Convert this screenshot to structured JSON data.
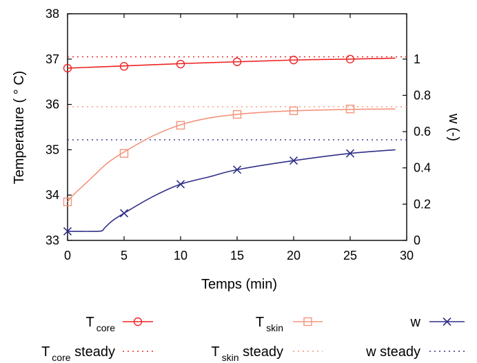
{
  "chart_data": {
    "type": "line",
    "xlabel": "Temps (min)",
    "ylabel": "Temperature ( ° C)",
    "y2label": "w (-)",
    "xlim": [
      0,
      30
    ],
    "ylim": [
      33,
      38
    ],
    "y2lim": [
      0,
      1.25
    ],
    "xticks": [
      "0",
      "5",
      "10",
      "15",
      "20",
      "25",
      "30"
    ],
    "yticks": [
      "33",
      "34",
      "35",
      "36",
      "37",
      "38"
    ],
    "y2ticks": [
      "0",
      "0.2",
      "0.4",
      "0.6",
      "0.8",
      "1"
    ],
    "grid": false,
    "legend_position": "bottom",
    "colors": {
      "core": "#ee2222",
      "skin": "#f4937a",
      "w": "#2e2e86"
    },
    "series": [
      {
        "name_main": "T",
        "name_sub": "core",
        "axis": "left",
        "color": "#ee2222",
        "marker": "circle",
        "style": "solid",
        "x": [
          0,
          5,
          10,
          15,
          20,
          25,
          29
        ],
        "y": [
          36.8,
          36.85,
          36.9,
          36.94,
          36.98,
          37.0,
          37.02
        ],
        "marker_x": [
          0,
          5,
          10,
          15,
          20,
          25
        ],
        "marker_y": [
          36.8,
          36.84,
          36.89,
          36.94,
          36.98,
          37.0
        ]
      },
      {
        "name_main": "T",
        "name_sub": "skin",
        "axis": "left",
        "color": "#f4937a",
        "marker": "square",
        "style": "solid",
        "x": [
          0,
          0.5,
          2,
          3.5,
          5,
          7.5,
          10,
          12.5,
          15,
          17.5,
          20,
          25,
          29
        ],
        "y": [
          33.85,
          34.0,
          34.35,
          34.7,
          34.95,
          35.3,
          35.55,
          35.7,
          35.78,
          35.83,
          35.86,
          35.89,
          35.9
        ],
        "marker_x": [
          0,
          5,
          10,
          15,
          20,
          25
        ],
        "marker_y": [
          33.85,
          34.92,
          35.54,
          35.78,
          35.86,
          35.9
        ]
      },
      {
        "name_main": "w",
        "name_sub": "",
        "axis": "right",
        "color": "#2e2e86",
        "marker": "x",
        "style": "solid",
        "x": [
          0,
          1,
          2,
          3,
          3.3,
          4,
          5,
          7.5,
          10,
          12.5,
          15,
          20,
          25,
          29
        ],
        "y": [
          0.05,
          0.05,
          0.05,
          0.052,
          0.07,
          0.11,
          0.15,
          0.24,
          0.31,
          0.35,
          0.39,
          0.44,
          0.48,
          0.5
        ],
        "marker_x": [
          0,
          5,
          10,
          15,
          20,
          25
        ],
        "marker_y": [
          0.05,
          0.15,
          0.31,
          0.39,
          0.44,
          0.48
        ]
      },
      {
        "name_main": "T",
        "name_sub": "core",
        "name_suffix": " steady",
        "axis": "left",
        "color": "#ee2222",
        "style": "dotted",
        "value": 37.05
      },
      {
        "name_main": "T",
        "name_sub": "skin",
        "name_suffix": " steady",
        "axis": "left",
        "color": "#f4937a",
        "style": "dotted",
        "value": 35.95
      },
      {
        "name_main": "w",
        "name_sub": "",
        "name_suffix": " steady",
        "axis": "right",
        "color": "#2e2e86",
        "style": "dotted",
        "value": 0.555
      }
    ]
  }
}
